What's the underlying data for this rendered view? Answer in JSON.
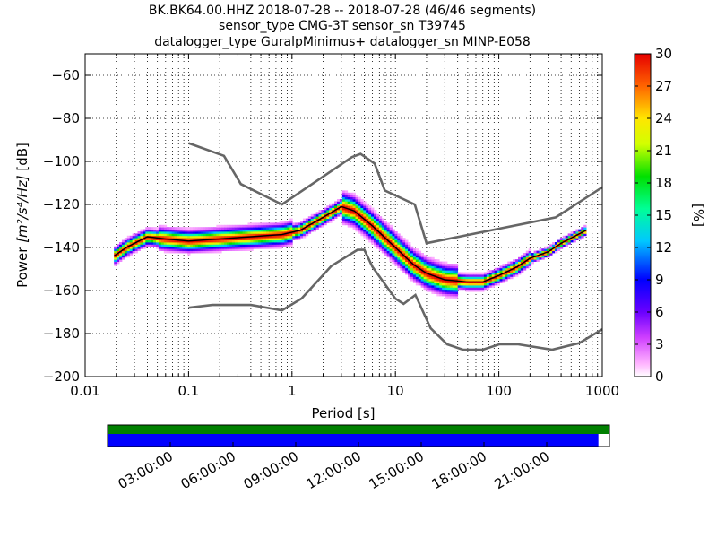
{
  "chart_data": {
    "type": "heatmap",
    "title_lines": [
      "BK.BK64.00.HHZ   2018-07-28 -- 2018-07-28  (46/46 segments)",
      "sensor_type CMG-3T sensor_sn T39745",
      "datalogger_type GuralpMinimus+ datalogger_sn MINP-E058"
    ],
    "xlabel": "Period [s]",
    "ylabel_prefix": "Power ",
    "ylabel_unit": "[m²/s⁴/Hz]",
    "ylabel_suffix": " [dB]",
    "x_scale": "log",
    "xlim": [
      0.01,
      1000
    ],
    "ylim": [
      -200,
      -50
    ],
    "x_ticks": [
      {
        "value": 0.01,
        "label": "0.01"
      },
      {
        "value": 0.1,
        "label": "0.1"
      },
      {
        "value": 1,
        "label": "1"
      },
      {
        "value": 10,
        "label": "10"
      },
      {
        "value": 100,
        "label": "100"
      },
      {
        "value": 1000,
        "label": "1000"
      }
    ],
    "y_ticks": [
      {
        "value": -60,
        "label": "−60"
      },
      {
        "value": -80,
        "label": "−80"
      },
      {
        "value": -100,
        "label": "−100"
      },
      {
        "value": -120,
        "label": "−120"
      },
      {
        "value": -140,
        "label": "−140"
      },
      {
        "value": -160,
        "label": "−160"
      },
      {
        "value": -180,
        "label": "−180"
      },
      {
        "value": -200,
        "label": "−200"
      }
    ],
    "grid": "dotted",
    "noise_models": {
      "high": [
        [
          0.1,
          -91.5
        ],
        [
          0.22,
          -97.4
        ],
        [
          0.32,
          -110.5
        ],
        [
          0.8,
          -120
        ],
        [
          3.8,
          -98
        ],
        [
          4.6,
          -96.5
        ],
        [
          6.3,
          -101
        ],
        [
          7.9,
          -113.5
        ],
        [
          15.4,
          -120
        ],
        [
          20,
          -138
        ],
        [
          354.8,
          -126
        ],
        [
          1000,
          -112
        ]
      ],
      "low": [
        [
          0.1,
          -168
        ],
        [
          0.17,
          -166.7
        ],
        [
          0.4,
          -166.7
        ],
        [
          0.8,
          -169.2
        ],
        [
          1.24,
          -163.7
        ],
        [
          2.4,
          -148.6
        ],
        [
          4.3,
          -141.1
        ],
        [
          5.0,
          -141.1
        ],
        [
          6.0,
          -149
        ],
        [
          10,
          -163.8
        ],
        [
          12,
          -166.2
        ],
        [
          15.6,
          -162.1
        ],
        [
          21.9,
          -177.5
        ],
        [
          31.6,
          -185
        ],
        [
          45,
          -187.5
        ],
        [
          70,
          -187.5
        ],
        [
          101,
          -185
        ],
        [
          154,
          -185
        ],
        [
          328,
          -187.5
        ],
        [
          600,
          -184.4
        ],
        [
          1000,
          -178
        ]
      ]
    },
    "mode_curve": [
      [
        0.019,
        -144
      ],
      [
        0.025,
        -140
      ],
      [
        0.03,
        -138
      ],
      [
        0.04,
        -135
      ],
      [
        0.06,
        -136
      ],
      [
        0.1,
        -137
      ],
      [
        0.2,
        -136
      ],
      [
        0.4,
        -135
      ],
      [
        0.8,
        -134
      ],
      [
        1.2,
        -132
      ],
      [
        2,
        -126
      ],
      [
        3,
        -121
      ],
      [
        4,
        -123
      ],
      [
        6,
        -130
      ],
      [
        10,
        -140
      ],
      [
        15,
        -148
      ],
      [
        20,
        -152
      ],
      [
        30,
        -155
      ],
      [
        50,
        -156
      ],
      [
        70,
        -156
      ],
      [
        100,
        -153
      ],
      [
        150,
        -149
      ],
      [
        200,
        -145
      ],
      [
        300,
        -142
      ],
      [
        400,
        -138
      ],
      [
        700,
        -132
      ]
    ],
    "colorbar": {
      "label": "[%]",
      "ticks": [
        {
          "value": 0,
          "label": "0"
        },
        {
          "value": 3,
          "label": "3"
        },
        {
          "value": 6,
          "label": "6"
        },
        {
          "value": 9,
          "label": "9"
        },
        {
          "value": 12,
          "label": "12"
        },
        {
          "value": 15,
          "label": "15"
        },
        {
          "value": 18,
          "label": "18"
        },
        {
          "value": 21,
          "label": "21"
        },
        {
          "value": 24,
          "label": "24"
        },
        {
          "value": 27,
          "label": "27"
        },
        {
          "value": 30,
          "label": "30"
        }
      ],
      "range": [
        0,
        30
      ],
      "colormap": "pqlx"
    },
    "time_axis": {
      "ticks": [
        "03:00:00",
        "06:00:00",
        "09:00:00",
        "12:00:00",
        "15:00:00",
        "18:00:00",
        "21:00:00"
      ],
      "coverage": [
        {
          "name": "data",
          "color": "#008000",
          "fraction": 1.0
        },
        {
          "name": "segments",
          "color": "#0000ff",
          "fraction": 0.978
        }
      ]
    }
  }
}
